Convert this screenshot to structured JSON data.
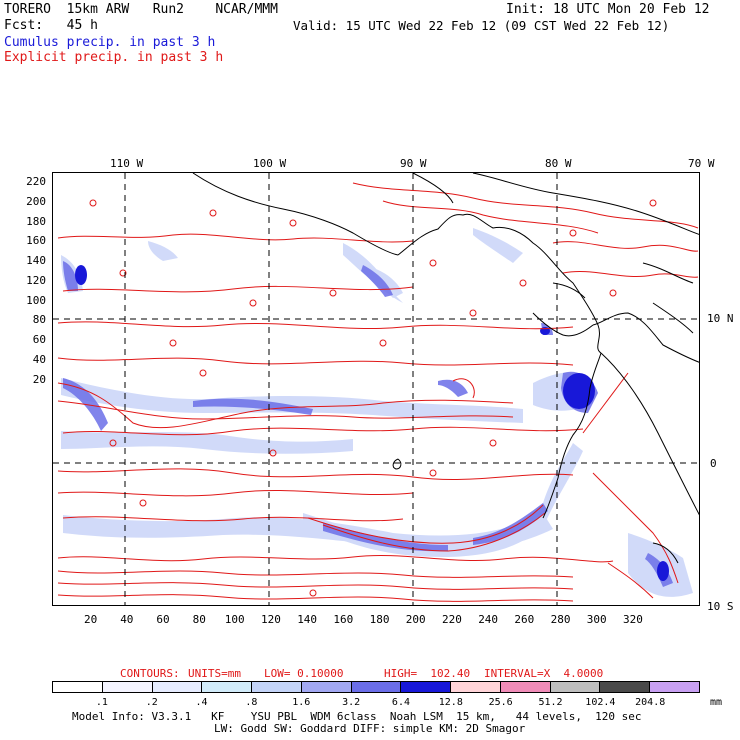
{
  "header": {
    "model": "TORERO  15km ARW   Run2    NCAR/MMM",
    "init": "Init: 18 UTC Mon 20 Feb 12",
    "fcst": "Fcst:   45 h",
    "valid": "Valid: 15 UTC Wed 22 Feb 12 (09 CST Wed 22 Feb 12)",
    "legend_cumulus": "Cumulus precip. in past 3 h",
    "legend_explicit": "Explicit precip. in past 3 h"
  },
  "map": {
    "lon_labels": [
      "110 W",
      "100 W",
      "90 W",
      "80 W",
      "70 W"
    ],
    "lat_labels": [
      "10 N",
      "0",
      "10 S"
    ],
    "y_ticks": [
      "220",
      "200",
      "180",
      "160",
      "140",
      "120",
      "100",
      "80",
      "60",
      "40",
      "20"
    ],
    "x_ticks": [
      "20",
      "40",
      "60",
      "80",
      "100",
      "120",
      "140",
      "160",
      "180",
      "200",
      "220",
      "240",
      "260",
      "280",
      "300",
      "320"
    ],
    "colors": {
      "coast": "#000000",
      "contour": "#e01818",
      "grid": "#000000"
    }
  },
  "contour_info": {
    "contours": "CONTOURS:",
    "units": "UNITS=mm",
    "low": "LOW= 0.10000",
    "high": "HIGH=  102.40",
    "interval": "INTERVAL=X  4.0000"
  },
  "colorbar": {
    "colors": [
      "#ffffff",
      "#f4f4ff",
      "#e6ecff",
      "#d2ecfa",
      "#c4d4f8",
      "#a2a8f2",
      "#6b6ee8",
      "#1818d8",
      "#ffd4d8",
      "#f08cb8",
      "#bebebe",
      "#4a4a4a",
      "#c8a0f2"
    ],
    "labels": [
      ".1",
      ".2",
      ".4",
      ".8",
      "1.6",
      "3.2",
      "6.4",
      "12.8",
      "25.6",
      "51.2",
      "102.4",
      "204.8"
    ],
    "units": "mm"
  },
  "footer": {
    "line1": "Model Info: V3.3.1   KF    YSU PBL  WDM 6class  Noah LSM  15 km,   44 levels,  120 sec",
    "line2": "LW: Godd SW: Goddard DIFF: simple KM: 2D Smagor"
  }
}
